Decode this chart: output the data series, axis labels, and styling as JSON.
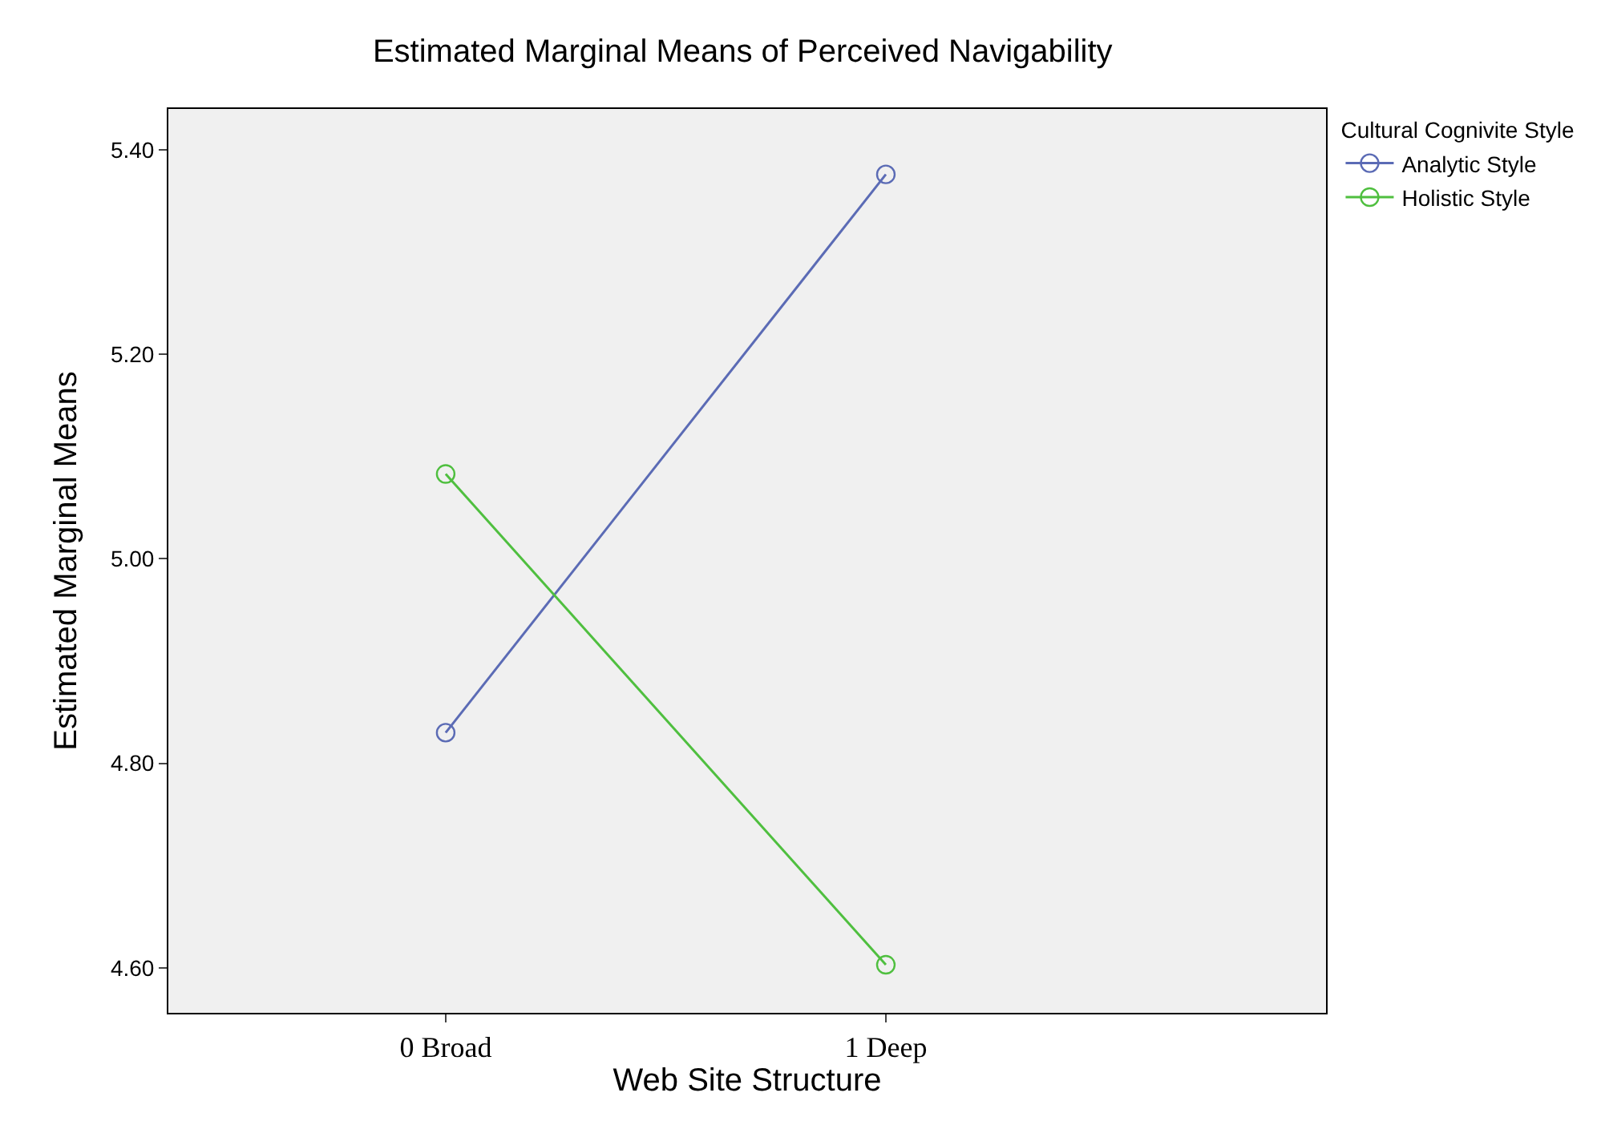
{
  "chart_data": {
    "type": "line",
    "title": "Estimated Marginal Means of Perceived Navigability",
    "xlabel": "Web Site Structure",
    "ylabel": "Estimated Marginal Means",
    "legend_title": "Cultural Cognivite Style",
    "categories": [
      "0 Broad",
      "1 Deep"
    ],
    "series": [
      {
        "name": "Analytic Style",
        "color": "#5b6bb5",
        "values": [
          4.83,
          5.376
        ]
      },
      {
        "name": "Holistic Style",
        "color": "#4fbf3f",
        "values": [
          5.083,
          4.603
        ]
      }
    ],
    "ylim": [
      4.556,
      5.44
    ],
    "yticks": [
      {
        "value": 4.6,
        "label": "4.60"
      },
      {
        "value": 4.8,
        "label": "4.80"
      },
      {
        "value": 5.0,
        "label": "5.00"
      },
      {
        "value": 5.2,
        "label": "5.20"
      },
      {
        "value": 5.4,
        "label": "5.40"
      }
    ],
    "grid": false,
    "legend": "top right",
    "marker": "circle",
    "line_style": "solid"
  }
}
